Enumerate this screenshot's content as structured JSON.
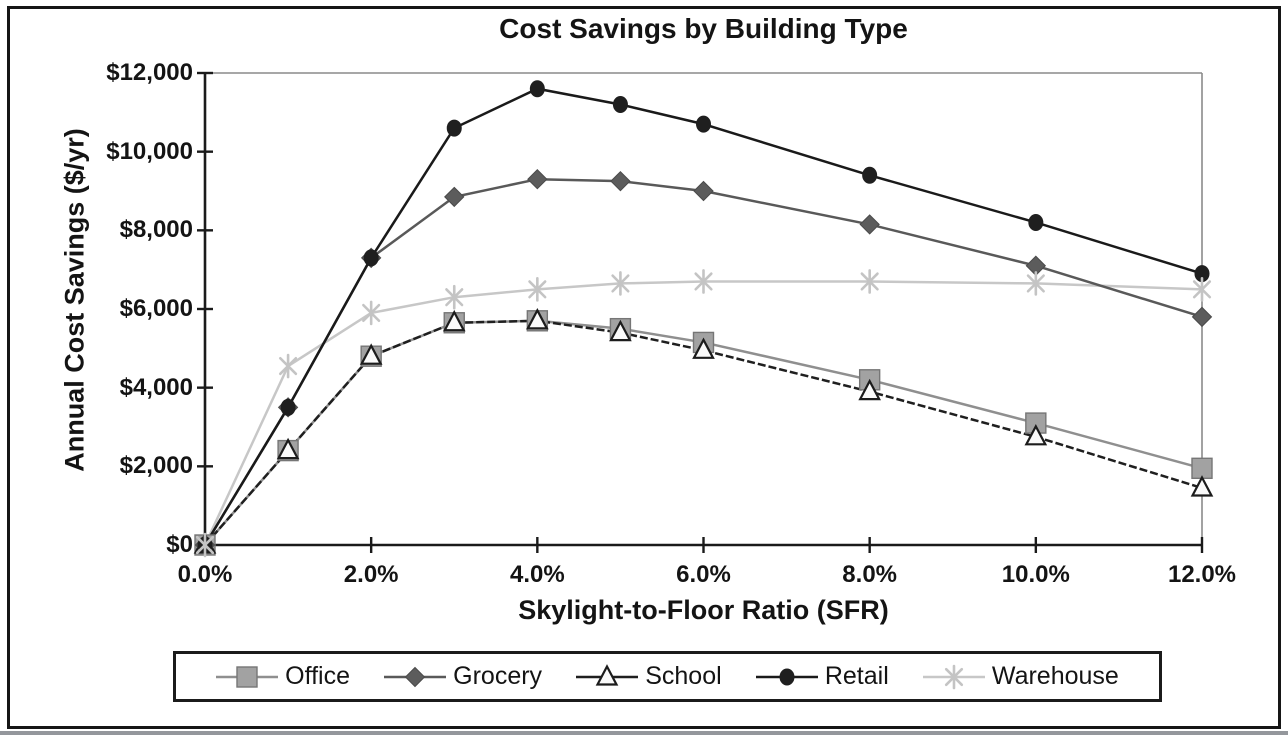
{
  "page": {
    "background": "#ffffff",
    "frame_color": "#161616",
    "bottom_strip_color": "#94979c"
  },
  "chart_data": {
    "type": "line",
    "title": "Cost Savings by Building Type",
    "xlabel": "Skylight-to-Floor Ratio (SFR)",
    "ylabel": "Annual Cost Savings ($/yr)",
    "grid": false,
    "legend_position": "bottom",
    "xlim": [
      0,
      12
    ],
    "ylim": [
      0,
      12000
    ],
    "x": [
      0,
      1,
      2,
      3,
      4,
      5,
      6,
      8,
      10,
      12
    ],
    "x_tick_values": [
      0,
      2,
      4,
      6,
      8,
      10,
      12
    ],
    "x_tick_labels": [
      "0.0%",
      "2.0%",
      "4.0%",
      "6.0%",
      "8.0%",
      "10.0%",
      "12.0%"
    ],
    "y_tick_values": [
      0,
      2000,
      4000,
      6000,
      8000,
      10000,
      12000
    ],
    "y_tick_labels": [
      "$0",
      "$2,000",
      "$4,000",
      "$6,000",
      "$8,000",
      "$10,000",
      "$12,000"
    ],
    "series": [
      {
        "name": "Office",
        "marker": "square",
        "line_color": "#8f8f8f",
        "marker_fill": "#a2a2a2",
        "marker_edge": "#767676",
        "dash": "",
        "values": [
          0,
          2400,
          4800,
          5650,
          5700,
          5500,
          5150,
          4200,
          3100,
          1950
        ]
      },
      {
        "name": "Grocery",
        "marker": "diamond",
        "line_color": "#595959",
        "marker_fill": "#5c5c5c",
        "marker_edge": "#4a4a4a",
        "dash": "",
        "values": [
          0,
          3500,
          7300,
          8850,
          9300,
          9250,
          9000,
          8150,
          7100,
          5800
        ]
      },
      {
        "name": "School",
        "marker": "triangle",
        "line_color": "#1f1f1f",
        "marker_fill": "#fafafa",
        "marker_edge": "#1c1c1c",
        "dash": "8 3",
        "values": [
          0,
          2400,
          4800,
          5650,
          5700,
          5400,
          4950,
          3900,
          2750,
          1450
        ]
      },
      {
        "name": "Retail",
        "marker": "circle",
        "line_color": "#1a1a1a",
        "marker_fill": "#1f1f1f",
        "marker_edge": "#1f1f1f",
        "dash": "",
        "values": [
          0,
          3500,
          7300,
          10600,
          11600,
          11200,
          10700,
          9400,
          8200,
          6900
        ]
      },
      {
        "name": "Warehouse",
        "marker": "asterisk",
        "line_color": "#c7c7c7",
        "marker_fill": "#c4c4c4",
        "marker_edge": "#c4c4c4",
        "dash": "",
        "values": [
          0,
          4550,
          5900,
          6300,
          6500,
          6650,
          6700,
          6700,
          6650,
          6500
        ]
      }
    ],
    "axis_color": "#1a1a1a",
    "frame_line_color": "#8a8a8a"
  }
}
